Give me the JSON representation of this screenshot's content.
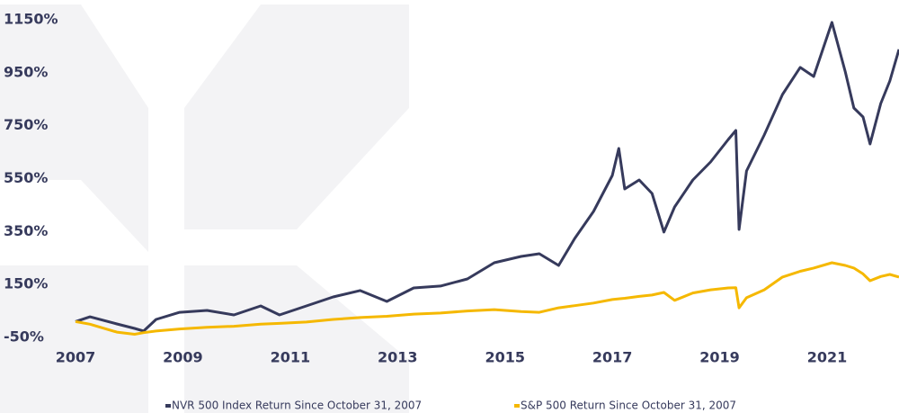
{
  "chart_data": {
    "type": "line",
    "x": [
      2007,
      2007.27,
      2007.77,
      2008.1,
      2008.27,
      2008.5,
      2008.94,
      2009.45,
      2009.95,
      2010.45,
      2010.8,
      2011.3,
      2011.8,
      2012.3,
      2012.8,
      2013.3,
      2013.8,
      2014.3,
      2014.8,
      2015.3,
      2015.64,
      2016.0,
      2016.3,
      2016.65,
      2017.0,
      2017.12,
      2017.23,
      2017.5,
      2017.74,
      2017.96,
      2018.16,
      2018.5,
      2018.83,
      2019.16,
      2019.3,
      2019.36,
      2019.5,
      2019.83,
      2020.17,
      2020.5,
      2020.75,
      2021.09,
      2021.34,
      2021.5,
      2021.67,
      2021.8,
      2022.0,
      2022.17,
      2022.34
    ],
    "series": [
      {
        "name": "NVR 500 Index Return Since October 31, 2007",
        "color": "#363a5c",
        "values": [
          10,
          28,
          1,
          -16,
          -26,
          18,
          45,
          52,
          35,
          69,
          35,
          69,
          103,
          127,
          86,
          137,
          144,
          171,
          232,
          256,
          266,
          222,
          324,
          426,
          562,
          664,
          511,
          545,
          494,
          348,
          443,
          545,
          613,
          698,
          732,
          358,
          579,
          715,
          868,
          970,
          936,
          1140,
          953,
          817,
          783,
          681,
          834,
          919,
          1038
        ]
      },
      {
        "name": "S&P 500 Return Since October 31, 2007",
        "color": "#f5b800",
        "values": [
          10,
          0,
          -30,
          -38,
          -32,
          -26,
          -18,
          -12,
          -8,
          0,
          3,
          8,
          18,
          25,
          30,
          38,
          42,
          50,
          55,
          48,
          45,
          62,
          70,
          80,
          93,
          96,
          98,
          105,
          110,
          120,
          90,
          118,
          130,
          137,
          138,
          62,
          100,
          130,
          178,
          200,
          212,
          232,
          222,
          212,
          190,
          164,
          180,
          188,
          178
        ]
      }
    ],
    "xlim": [
      2007,
      2022.34
    ],
    "xticks": [
      2007,
      2009,
      2011,
      2013,
      2015,
      2017,
      2019,
      2021
    ],
    "ylim": [
      -50,
      1150
    ],
    "yticks": [
      {
        "value": -50,
        "label": "-50%"
      },
      {
        "value": 150,
        "label": "150%"
      },
      {
        "value": 350,
        "label": "350%"
      },
      {
        "value": 550,
        "label": "550%"
      },
      {
        "value": 750,
        "label": "750%"
      },
      {
        "value": 950,
        "label": "950%"
      },
      {
        "value": 1150,
        "label": "1150%"
      }
    ],
    "legend": "bottom"
  }
}
